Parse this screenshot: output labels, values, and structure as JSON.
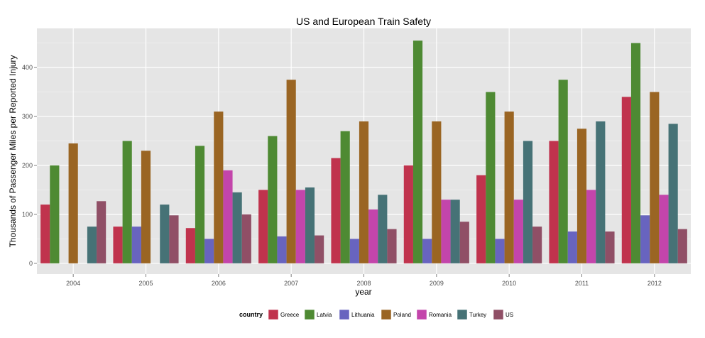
{
  "chart_data": {
    "type": "bar",
    "title": "US and European Train Safety",
    "xlabel": "year",
    "ylabel": "Thousands of Passenger Miles per Reported Injury",
    "categories": [
      "2004",
      "2005",
      "2006",
      "2007",
      "2008",
      "2009",
      "2010",
      "2011",
      "2012"
    ],
    "ylim": [
      -22,
      480
    ],
    "yticks": [
      0,
      100,
      200,
      300,
      400
    ],
    "grid": true,
    "legend": {
      "title": "country",
      "position": "bottom"
    },
    "series": [
      {
        "name": "Greece",
        "color": "#c0334d",
        "values": [
          120,
          75,
          72,
          150,
          215,
          200,
          180,
          250,
          340
        ]
      },
      {
        "name": "Latvia",
        "color": "#4e8a33",
        "values": [
          200,
          250,
          240,
          260,
          270,
          455,
          350,
          375,
          450
        ]
      },
      {
        "name": "Lithuania",
        "color": "#6864bf",
        "values": [
          null,
          75,
          50,
          55,
          50,
          50,
          50,
          65,
          98
        ]
      },
      {
        "name": "Poland",
        "color": "#9a6523",
        "values": [
          245,
          230,
          310,
          375,
          290,
          290,
          310,
          275,
          350
        ]
      },
      {
        "name": "Romania",
        "color": "#c345ab",
        "values": [
          null,
          null,
          190,
          150,
          110,
          130,
          130,
          150,
          140
        ]
      },
      {
        "name": "Turkey",
        "color": "#467276",
        "values": [
          75,
          120,
          145,
          155,
          140,
          130,
          250,
          290,
          285
        ]
      },
      {
        "name": "US",
        "color": "#904f66",
        "values": [
          127,
          98,
          100,
          57,
          70,
          85,
          75,
          65,
          70
        ]
      }
    ]
  }
}
